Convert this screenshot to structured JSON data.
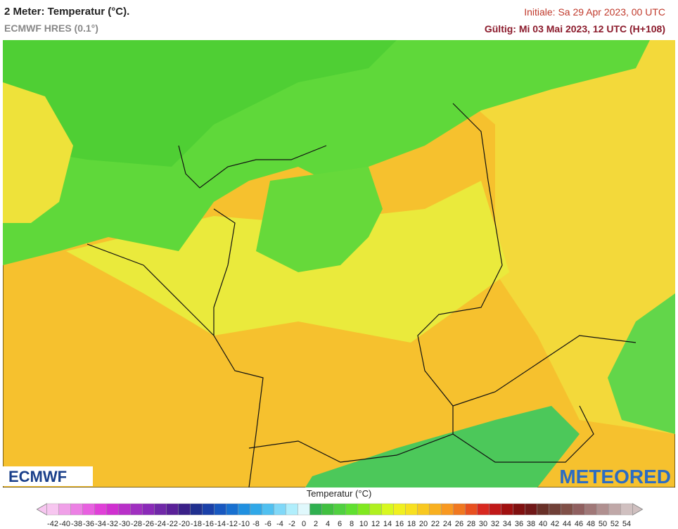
{
  "header": {
    "title": "2 Meter: Temperatur (°C).",
    "subtitle": "ECMWF HRES (0.1°)",
    "init": "Initiale: Sa 29 Apr 2023, 00 UTC",
    "valid": "Gültig: Mi 03 Mai 2023, 12 UTC (H+108)"
  },
  "map": {
    "logo_left": "ECMWF",
    "logo_right": "METEORED"
  },
  "legend": {
    "title": "Temperatur (°C)",
    "ticks": [
      -42,
      -40,
      -38,
      -36,
      -34,
      -32,
      -30,
      -28,
      -26,
      -24,
      -22,
      -20,
      -18,
      -16,
      -14,
      -12,
      -10,
      -8,
      -6,
      -4,
      -2,
      0,
      2,
      4,
      6,
      8,
      10,
      12,
      14,
      16,
      18,
      20,
      22,
      24,
      26,
      28,
      30,
      32,
      34,
      36,
      38,
      40,
      42,
      44,
      46,
      48,
      50,
      52,
      54
    ],
    "colors": [
      "#f7c6f0",
      "#f0a0e8",
      "#ec80e4",
      "#e860e0",
      "#e040d8",
      "#d030d0",
      "#b830c8",
      "#a030c0",
      "#8a2ab8",
      "#7028a8",
      "#5a2098",
      "#3a2088",
      "#20308f",
      "#1a40a8",
      "#1858c0",
      "#1870d0",
      "#2090e0",
      "#30a8e8",
      "#50c0f0",
      "#80d8f8",
      "#b0eefc",
      "#e0f8fc",
      "#30b050",
      "#40c040",
      "#50d040",
      "#60e030",
      "#80e820",
      "#b0f020",
      "#d8f820",
      "#f0f020",
      "#f8e020",
      "#f8c820",
      "#f8b020",
      "#f89820",
      "#f07820",
      "#e85020",
      "#d82820",
      "#c01818",
      "#a01010",
      "#801010",
      "#701818",
      "#683028",
      "#704038",
      "#805048",
      "#906060",
      "#a07878",
      "#b09090",
      "#c0a8a8",
      "#d0c0c0"
    ]
  }
}
